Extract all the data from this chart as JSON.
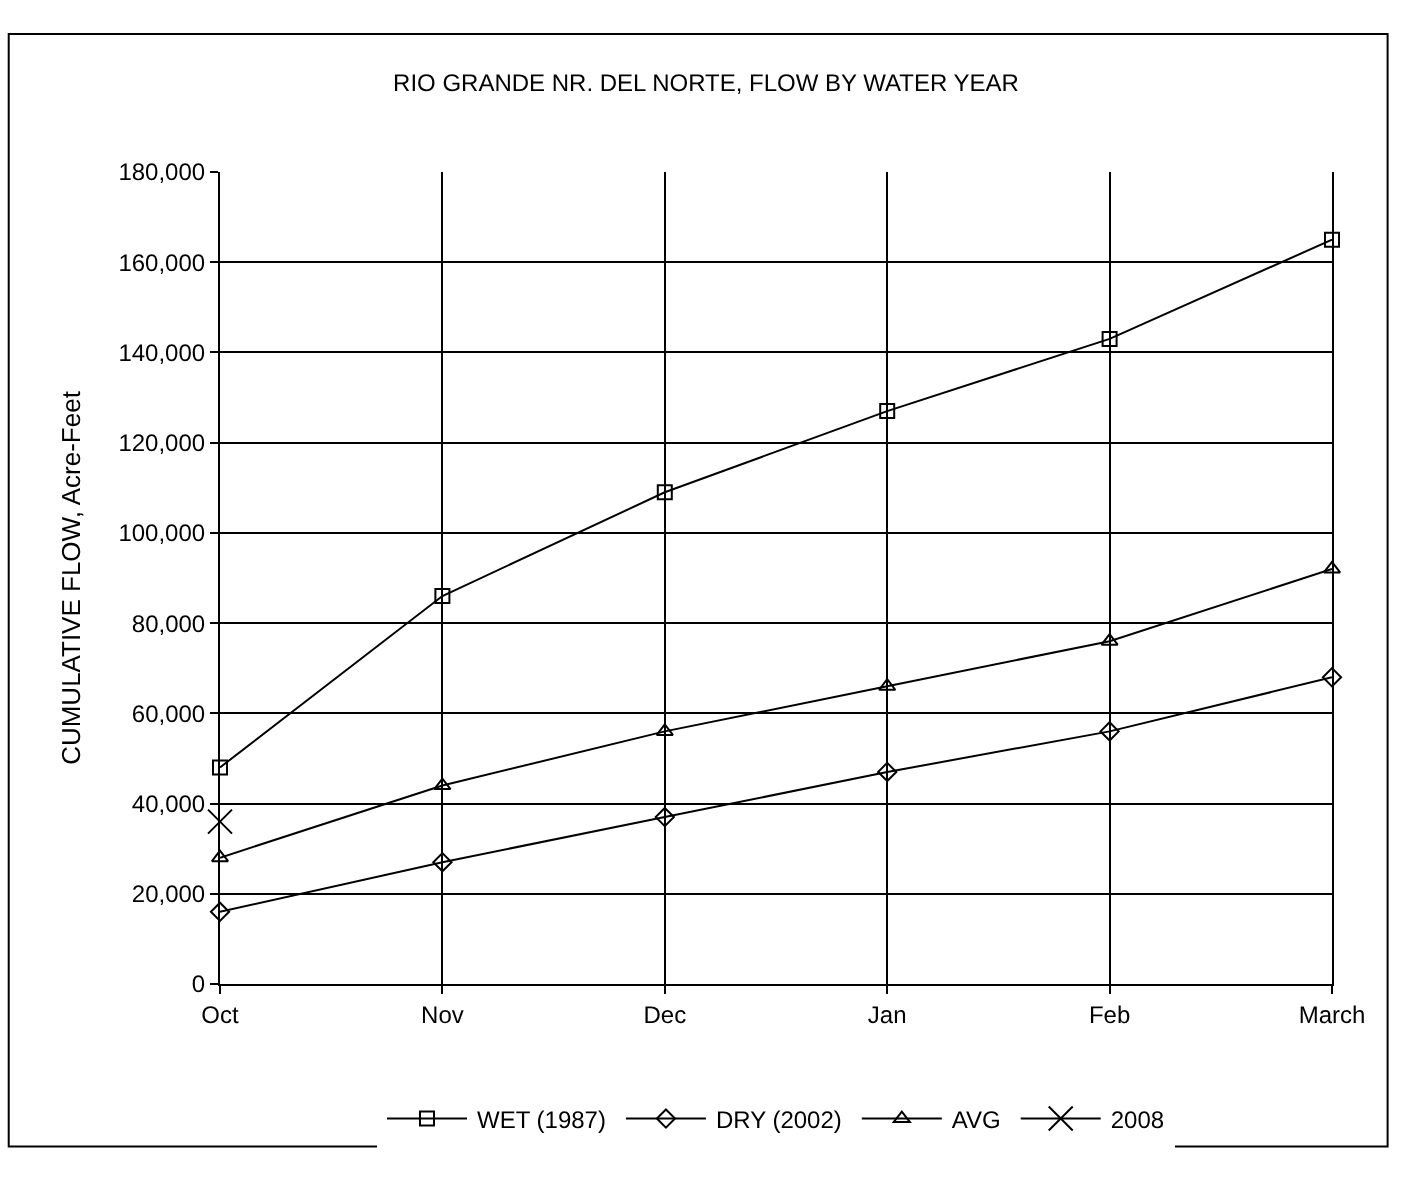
{
  "chart_data": {
    "type": "line",
    "title": "RIO GRANDE NR. DEL NORTE, FLOW BY WATER YEAR",
    "ylabel": "CUMULATIVE FLOW, Acre-Feet",
    "categories": [
      "Oct",
      "Nov",
      "Dec",
      "Jan",
      "Feb",
      "March"
    ],
    "series": [
      {
        "name": "WET (1987)",
        "color": "#000000",
        "marker": "square",
        "values": [
          48000,
          86000,
          109000,
          127000,
          143000,
          165000
        ]
      },
      {
        "name": "DRY (2002)",
        "color": "#000000",
        "marker": "diamond",
        "values": [
          16000,
          27000,
          37000,
          47000,
          56000,
          68000
        ]
      },
      {
        "name": "AVG",
        "color": "#000000",
        "marker": "triangle",
        "values": [
          28000,
          44000,
          56000,
          66000,
          76000,
          92000
        ]
      },
      {
        "name": "2008",
        "color": "#000000",
        "marker": "cross",
        "values": [
          36000,
          null,
          null,
          null,
          null,
          null
        ]
      }
    ],
    "ylim": [
      0,
      180000
    ],
    "yticks": [
      {
        "value": 0,
        "label": "0"
      },
      {
        "value": 20000,
        "label": "20,000"
      },
      {
        "value": 40000,
        "label": "40,000"
      },
      {
        "value": 60000,
        "label": "60,000"
      },
      {
        "value": 80000,
        "label": "80,000"
      },
      {
        "value": 100000,
        "label": "100,000"
      },
      {
        "value": 120000,
        "label": "120,000"
      },
      {
        "value": 140000,
        "label": "140,000"
      },
      {
        "value": 160000,
        "label": "160,000"
      },
      {
        "value": 180000,
        "label": "180,000"
      }
    ],
    "grid": true,
    "legend": "bottom",
    "line_style": "solid"
  }
}
